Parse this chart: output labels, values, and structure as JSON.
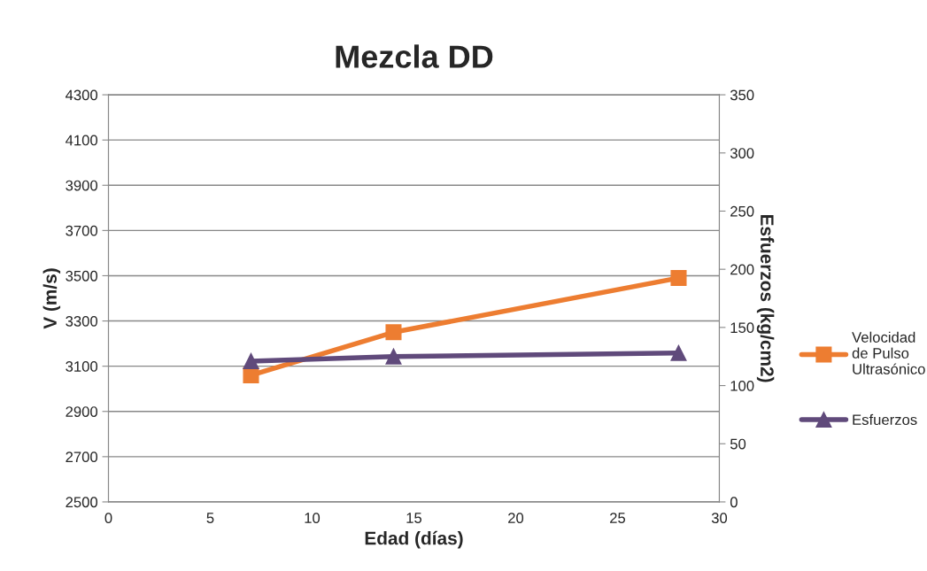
{
  "chart_data": {
    "type": "line",
    "title": "Mezcla DD",
    "xlabel": "Edad (días)",
    "ylabel": "V (m/s)",
    "y2label": "Esfuerzos (kg/cm2)",
    "x": [
      7,
      14,
      28
    ],
    "series": [
      {
        "name": "Velocidad de Pulso Ultrasónico",
        "color": "#ed7d31",
        "values": [
          3060,
          3250,
          3490
        ],
        "marker": "square"
      },
      {
        "name": "Esfuerzos",
        "color": "#604a7b",
        "values": [
          121,
          125,
          128
        ],
        "marker": "triangle",
        "axis": "y2"
      }
    ],
    "xlim": [
      0,
      30
    ],
    "xticks": [
      0,
      5,
      10,
      15,
      20,
      25,
      30
    ],
    "ylim": [
      2500,
      4300
    ],
    "yticks": [
      2500,
      2700,
      2900,
      3100,
      3300,
      3500,
      3700,
      3900,
      4100,
      4300
    ],
    "y2lim": [
      0,
      350
    ],
    "y2ticks": [
      0,
      50,
      100,
      150,
      200,
      250,
      300,
      350
    ],
    "grid": "y",
    "legend": "right",
    "line_style": "solid"
  }
}
